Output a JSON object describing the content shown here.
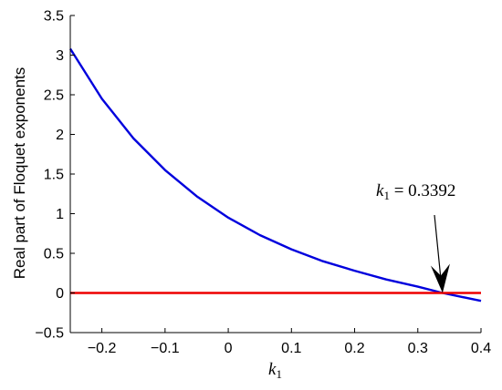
{
  "chart_data": {
    "type": "line",
    "title": "",
    "xlabel": "k",
    "xlabel_subscript": "1",
    "ylabel": "Real part of Floquet exponents",
    "xlim": [
      -0.25,
      0.4
    ],
    "ylim": [
      -0.5,
      3.5
    ],
    "xticks": [
      -0.2,
      -0.1,
      0,
      0.1,
      0.2,
      0.3,
      0.4
    ],
    "xtick_labels": [
      "−0.2",
      "−0.1",
      "0",
      "0.1",
      "0.2",
      "0.3",
      "0.4"
    ],
    "yticks": [
      -0.5,
      0,
      0.5,
      1,
      1.5,
      2,
      2.5,
      3,
      3.5
    ],
    "ytick_labels": [
      "−0.5",
      "0",
      "0.5",
      "1",
      "1.5",
      "2",
      "2.5",
      "3",
      "3.5"
    ],
    "grid": false,
    "series": [
      {
        "color": "#0000dd",
        "x": [
          -0.25,
          -0.2,
          -0.15,
          -0.1,
          -0.05,
          0,
          0.05,
          0.1,
          0.15,
          0.2,
          0.25,
          0.3,
          0.3392,
          0.4
        ],
        "y": [
          3.08,
          2.45,
          1.95,
          1.55,
          1.22,
          0.95,
          0.73,
          0.55,
          0.4,
          0.28,
          0.17,
          0.08,
          0.0,
          -0.1
        ]
      },
      {
        "color": "#ee0000",
        "x": [
          -0.25,
          0.4
        ],
        "y": [
          0,
          0
        ]
      }
    ],
    "annotations": [
      {
        "symbol": "k",
        "subscript": "1",
        "text": " = 0.3392",
        "target": [
          0.3392,
          0
        ]
      }
    ]
  }
}
